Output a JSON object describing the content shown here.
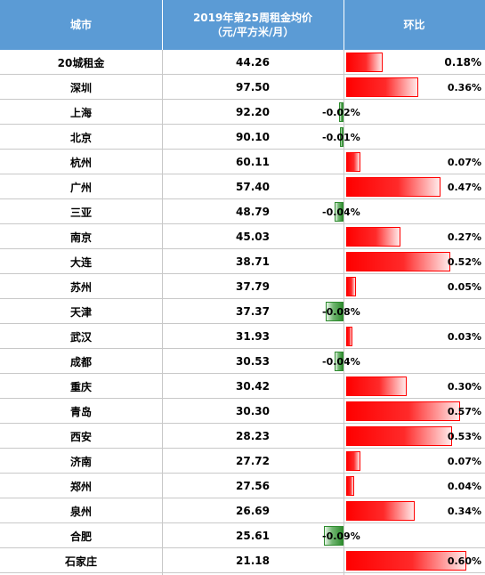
{
  "header": {
    "city": "城市",
    "price_line1": "2019年第25周租金均价",
    "price_line2": "（元/平方米/月）",
    "change": "环比"
  },
  "chart_data": {
    "type": "table",
    "columns": [
      "城市",
      "2019年第25周租金均价（元/平方米/月）",
      "环比"
    ],
    "rows": [
      {
        "city": "20城租金",
        "price": "44.26",
        "change": 0.18,
        "change_label": "0.18%"
      },
      {
        "city": "深圳",
        "price": "97.50",
        "change": 0.36,
        "change_label": "0.36%"
      },
      {
        "city": "上海",
        "price": "92.20",
        "change": -0.02,
        "change_label": "-0.02%"
      },
      {
        "city": "北京",
        "price": "90.10",
        "change": -0.01,
        "change_label": "-0.01%"
      },
      {
        "city": "杭州",
        "price": "60.11",
        "change": 0.07,
        "change_label": "0.07%"
      },
      {
        "city": "广州",
        "price": "57.40",
        "change": 0.47,
        "change_label": "0.47%"
      },
      {
        "city": "三亚",
        "price": "48.79",
        "change": -0.04,
        "change_label": "-0.04%"
      },
      {
        "city": "南京",
        "price": "45.03",
        "change": 0.27,
        "change_label": "0.27%"
      },
      {
        "city": "大连",
        "price": "38.71",
        "change": 0.52,
        "change_label": "0.52%"
      },
      {
        "city": "苏州",
        "price": "37.79",
        "change": 0.05,
        "change_label": "0.05%"
      },
      {
        "city": "天津",
        "price": "37.37",
        "change": -0.08,
        "change_label": "-0.08%"
      },
      {
        "city": "武汉",
        "price": "31.93",
        "change": 0.03,
        "change_label": "0.03%"
      },
      {
        "city": "成都",
        "price": "30.53",
        "change": -0.04,
        "change_label": "-0.04%"
      },
      {
        "city": "重庆",
        "price": "30.42",
        "change": 0.3,
        "change_label": "0.30%"
      },
      {
        "city": "青岛",
        "price": "30.30",
        "change": 0.57,
        "change_label": "0.57%"
      },
      {
        "city": "西安",
        "price": "28.23",
        "change": 0.53,
        "change_label": "0.53%"
      },
      {
        "city": "济南",
        "price": "27.72",
        "change": 0.07,
        "change_label": "0.07%"
      },
      {
        "city": "郑州",
        "price": "27.56",
        "change": 0.04,
        "change_label": "0.04%"
      },
      {
        "city": "泉州",
        "price": "26.69",
        "change": 0.34,
        "change_label": "0.34%"
      },
      {
        "city": "合肥",
        "price": "25.61",
        "change": -0.09,
        "change_label": "-0.09%"
      },
      {
        "city": "石家庄",
        "price": "21.18",
        "change": 0.6,
        "change_label": "0.60%"
      }
    ],
    "colors": {
      "positive": "#ff0000",
      "negative": "#2e8b2e",
      "header_bg": "#5b9bd5"
    }
  }
}
